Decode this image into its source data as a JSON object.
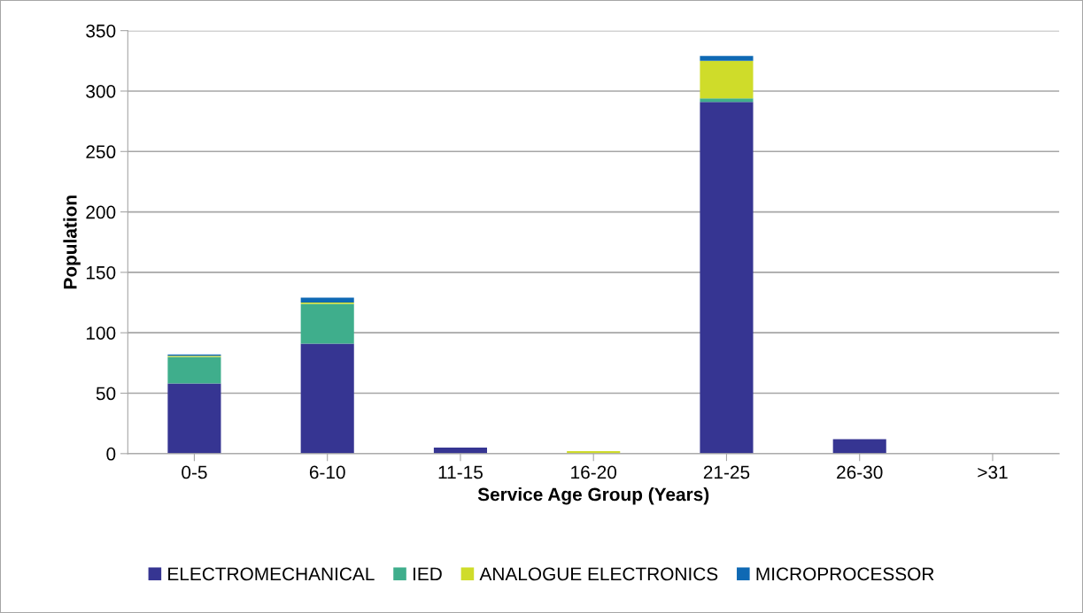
{
  "chart_data": {
    "type": "bar",
    "stacked": true,
    "xlabel": "Service Age Group (Years)",
    "ylabel": "Population",
    "categories": [
      "0-5",
      "6-10",
      "11-15",
      "16-20",
      "21-25",
      "26-30",
      ">31"
    ],
    "series": [
      {
        "name": "ELECTROMECHANICAL",
        "color": "#363592",
        "values": [
          58,
          91,
          5,
          0,
          291,
          12,
          0
        ]
      },
      {
        "name": "IED",
        "color": "#3fae8c",
        "values": [
          22,
          33,
          0,
          0,
          3,
          0,
          0
        ]
      },
      {
        "name": "ANALOGUE ELECTRONICS",
        "color": "#cfdc2a",
        "values": [
          1,
          1,
          0,
          2,
          31,
          0,
          0
        ]
      },
      {
        "name": "MICROPROCESSOR",
        "color": "#0f69b4",
        "values": [
          1,
          4,
          0,
          0,
          4,
          0,
          0
        ]
      }
    ],
    "ylim": [
      0,
      350
    ],
    "yticks": [
      0,
      50,
      100,
      150,
      200,
      250,
      300,
      350
    ],
    "grid": "y",
    "legend": "bottom"
  }
}
